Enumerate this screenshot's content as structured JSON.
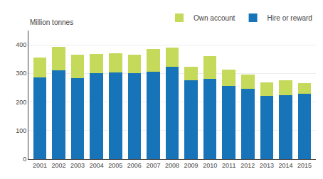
{
  "chart_data": {
    "type": "bar",
    "stacked": true,
    "ylabel": "Million tonnes",
    "categories": [
      "2001",
      "2002",
      "2003",
      "2004",
      "2005",
      "2006",
      "2007",
      "2008",
      "2009",
      "2010",
      "2011",
      "2012",
      "2013",
      "2014",
      "2015"
    ],
    "series": [
      {
        "name": "Hire or reward",
        "color": "#1874b8",
        "values": [
          285,
          310,
          283,
          300,
          303,
          300,
          305,
          322,
          275,
          280,
          256,
          245,
          222,
          225,
          228
        ]
      },
      {
        "name": "Own account",
        "color": "#c5d95a",
        "values": [
          70,
          83,
          82,
          68,
          68,
          65,
          80,
          68,
          47,
          80,
          57,
          50,
          47,
          50,
          38
        ]
      }
    ],
    "ylim": [
      0,
      450
    ],
    "yticks": [
      0,
      100,
      200,
      300,
      400
    ],
    "grid": true,
    "legend": "upper right"
  }
}
